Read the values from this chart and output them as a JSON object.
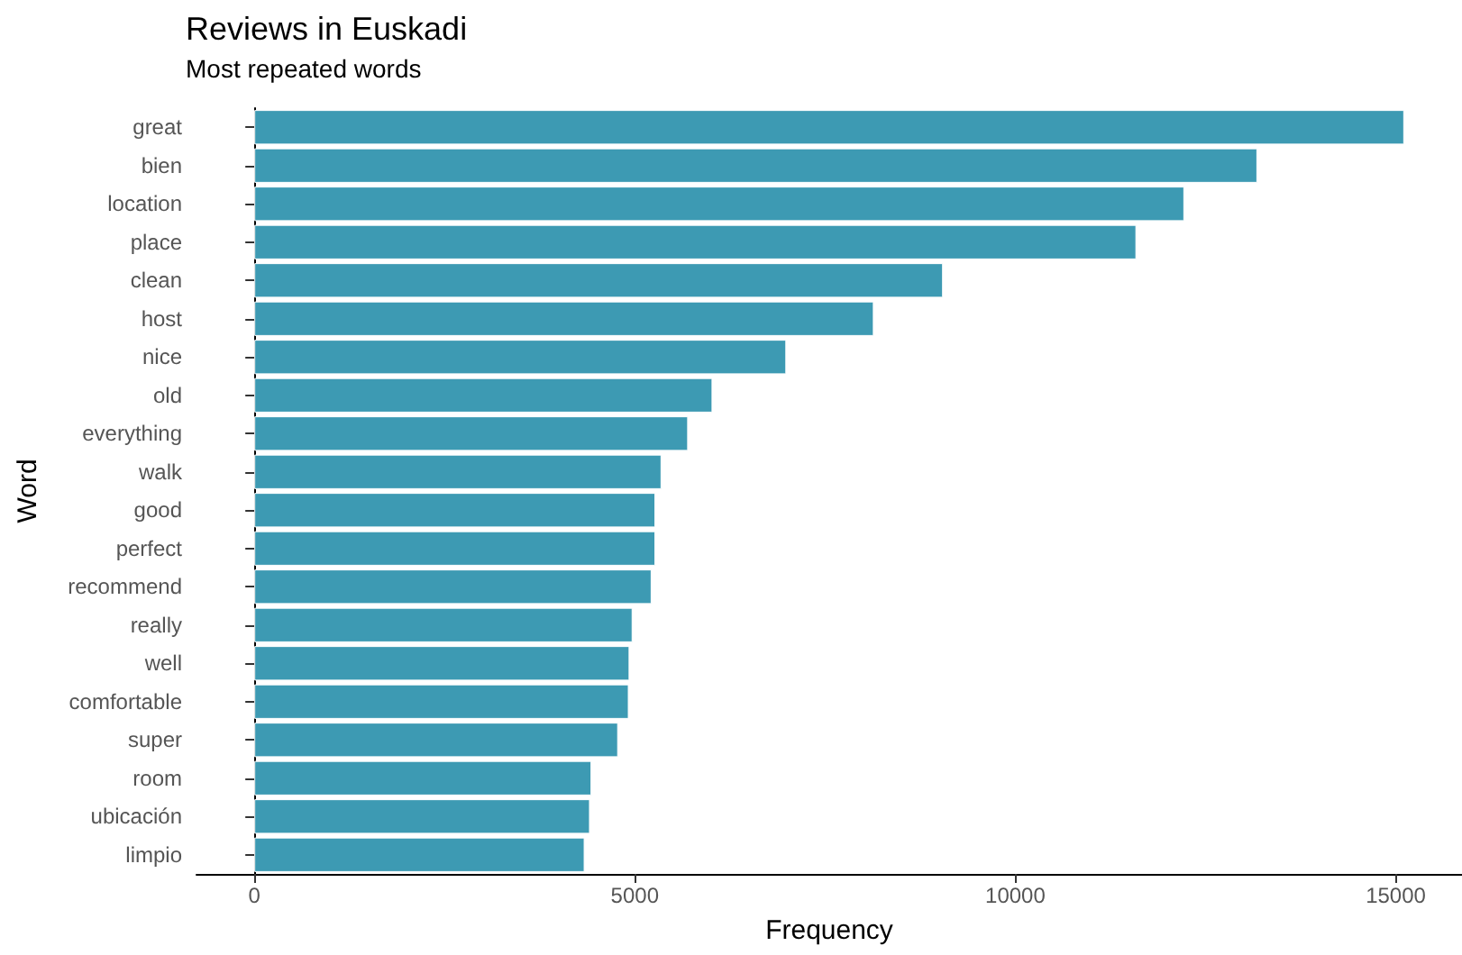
{
  "chart_data": {
    "type": "bar",
    "orientation": "horizontal",
    "title": "Reviews in Euskadi",
    "subtitle": "Most repeated words",
    "xlabel": "Frequency",
    "ylabel": "Word",
    "categories": [
      "great",
      "bien",
      "location",
      "place",
      "clean",
      "host",
      "nice",
      "old",
      "everything",
      "walk",
      "good",
      "perfect",
      "recommend",
      "really",
      "well",
      "comfortable",
      "super",
      "room",
      "ubicación",
      "limpio"
    ],
    "values": [
      15110,
      13180,
      12220,
      11590,
      9050,
      8140,
      6990,
      6020,
      5700,
      5350,
      5270,
      5270,
      5220,
      4970,
      4930,
      4920,
      4780,
      4430,
      4410,
      4340
    ],
    "color": "#3d9ab3",
    "xlim": [
      -760,
      15870
    ],
    "xticks": [
      0,
      5000,
      10000,
      15000
    ]
  }
}
